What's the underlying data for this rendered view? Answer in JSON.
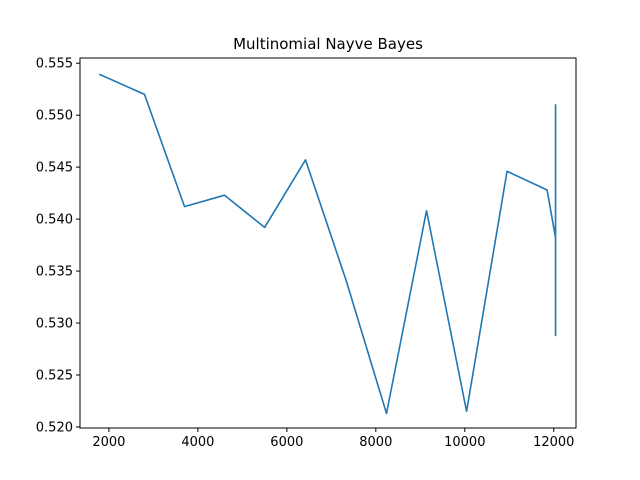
{
  "chart_data": {
    "type": "line",
    "title": "Multinomial Nayve Bayes",
    "xlabel": "",
    "ylabel": "",
    "xlim": [
      1350,
      12500
    ],
    "ylim": [
      0.5199,
      0.5555
    ],
    "x_ticks": [
      2000,
      4000,
      6000,
      8000,
      10000,
      12000
    ],
    "x_tick_labels": [
      "2000",
      "4000",
      "6000",
      "8000",
      "10000",
      "12000"
    ],
    "y_ticks": [
      0.52,
      0.525,
      0.53,
      0.535,
      0.54,
      0.545,
      0.55,
      0.555
    ],
    "y_tick_labels": [
      "0.520",
      "0.525",
      "0.530",
      "0.535",
      "0.540",
      "0.545",
      "0.550",
      "0.555"
    ],
    "grid": false,
    "series": [
      {
        "color": "#1f77b4",
        "x": [
          1800,
          2800,
          3700,
          4600,
          5500,
          6420,
          7340,
          8240,
          9140,
          10040,
          10950,
          11850,
          12040,
          12040,
          12040,
          12040,
          12040,
          12040
        ],
        "y": [
          0.5539,
          0.552,
          0.5412,
          0.5423,
          0.5392,
          0.5457,
          0.534,
          0.5213,
          0.5408,
          0.5215,
          0.5446,
          0.5428,
          0.5382,
          0.5288,
          0.551,
          0.529,
          0.5509,
          0.538
        ]
      }
    ]
  }
}
